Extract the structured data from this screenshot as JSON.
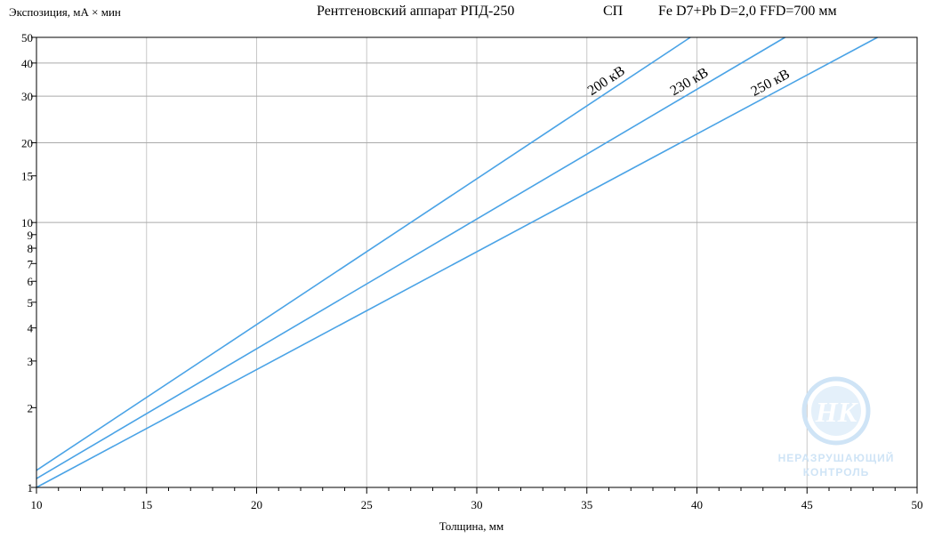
{
  "header": {
    "title": "Рентгеновский аппарат РПД-250",
    "film": "СП",
    "params": "Fe D7+Pb D=2,0 FFD=700 мм"
  },
  "watermark": {
    "logo_text": "НК",
    "line1": "НЕРАЗРУШАЮЩИЙ",
    "line2": "КОНТРОЛЬ",
    "color": "#a9cff0"
  },
  "chart_data": {
    "type": "line",
    "title": "Рентгеновский аппарат РПД-250",
    "xlabel": "Толщина, мм",
    "ylabel": "Экспозиция, мА × мин",
    "xlim": [
      10,
      50
    ],
    "ylim": [
      1,
      50
    ],
    "yscale": "log",
    "grid": true,
    "x_ticks": [
      "10",
      "15",
      "20",
      "25",
      "30",
      "35",
      "40",
      "45",
      "50"
    ],
    "y_ticks": [
      {
        "value": 1,
        "label": "1"
      },
      {
        "value": 2,
        "label": "2"
      },
      {
        "value": 3,
        "label": "3"
      },
      {
        "value": 4,
        "label": "4"
      },
      {
        "value": 5,
        "label": "5"
      },
      {
        "value": 6,
        "label": "6"
      },
      {
        "value": 7,
        "label": "7"
      },
      {
        "value": 8,
        "label": "8"
      },
      {
        "value": 9,
        "label": "9"
      },
      {
        "value": 10,
        "label": "10"
      },
      {
        "value": 15,
        "label": "15"
      },
      {
        "value": 20,
        "label": "20"
      },
      {
        "value": 30,
        "label": "30"
      },
      {
        "value": 40,
        "label": "40"
      },
      {
        "value": 50,
        "label": "50"
      }
    ],
    "line_color": "#4aa3e6",
    "series": [
      {
        "name": "200 кВ",
        "x": [
          10,
          39.7
        ],
        "y": [
          1.16,
          50
        ]
      },
      {
        "name": "230 кВ",
        "x": [
          10,
          44.0
        ],
        "y": [
          1.08,
          50
        ]
      },
      {
        "name": "250 кВ",
        "x": [
          10,
          48.2
        ],
        "y": [
          1.0,
          50
        ]
      }
    ]
  }
}
